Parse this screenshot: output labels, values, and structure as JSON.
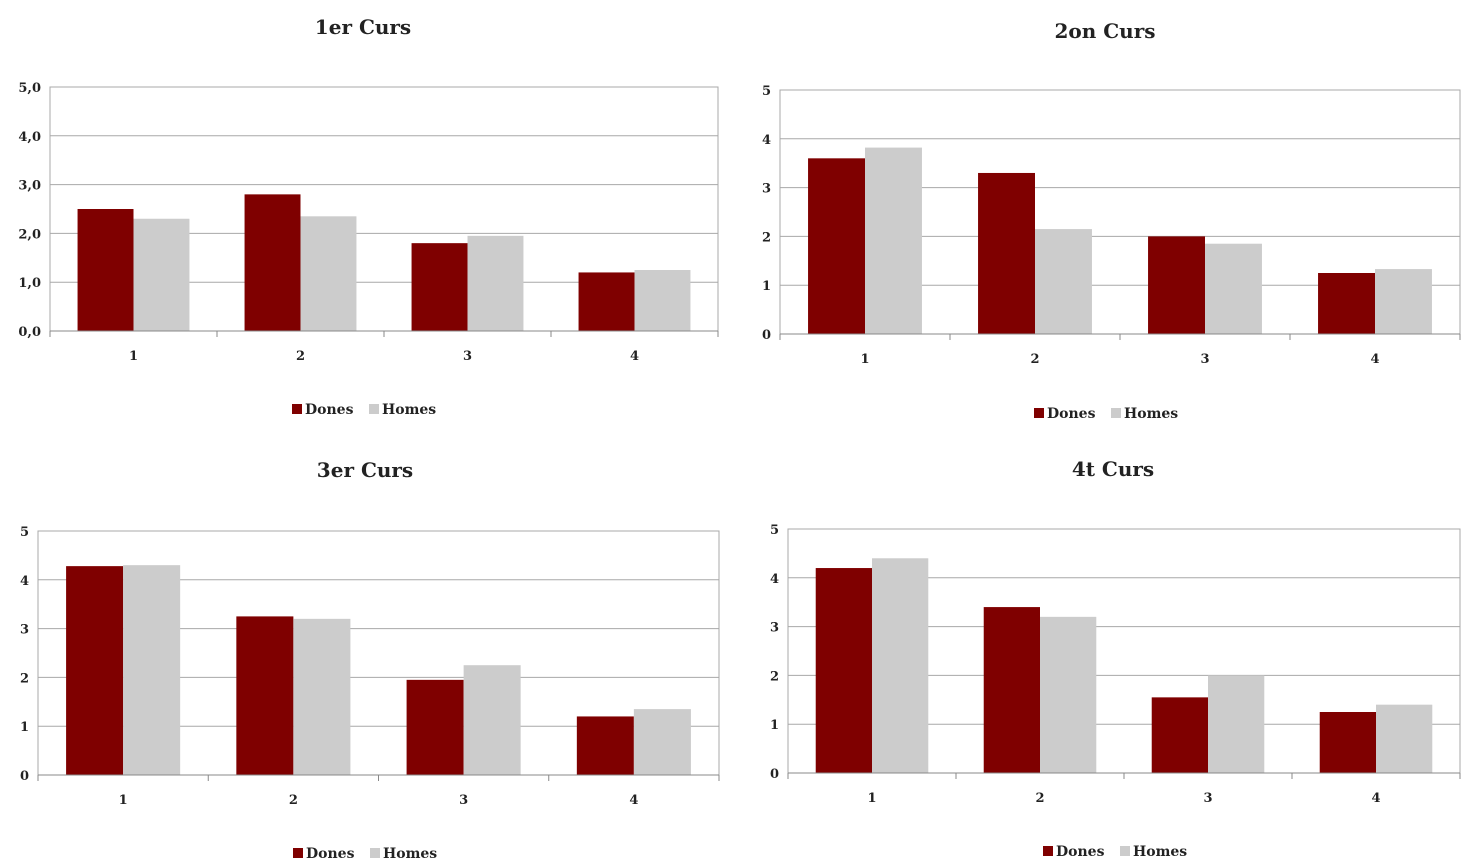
{
  "legend": {
    "women": "Dones",
    "men": "Homes"
  },
  "colors": {
    "women": "#7f0000",
    "men": "#cccccc"
  },
  "chart_data": [
    {
      "type": "bar",
      "title": "1er Curs",
      "categories": [
        "1",
        "2",
        "3",
        "4"
      ],
      "series": [
        {
          "name": "Dones",
          "values": [
            2.5,
            2.8,
            1.8,
            1.2
          ]
        },
        {
          "name": "Homes",
          "values": [
            2.3,
            2.35,
            1.95,
            1.25
          ]
        }
      ],
      "ylim": [
        0,
        5
      ],
      "yticks": [
        "0,0",
        "1,0",
        "2,0",
        "3,0",
        "4,0",
        "5,0"
      ],
      "grid": true,
      "legend_position": "bottom"
    },
    {
      "type": "bar",
      "title": "2on Curs",
      "categories": [
        "1",
        "2",
        "3",
        "4"
      ],
      "series": [
        {
          "name": "Dones",
          "values": [
            3.6,
            3.3,
            2.0,
            1.25
          ]
        },
        {
          "name": "Homes",
          "values": [
            3.82,
            2.15,
            1.85,
            1.33
          ]
        }
      ],
      "ylim": [
        0,
        5
      ],
      "yticks": [
        "0",
        "1",
        "2",
        "3",
        "4",
        "5"
      ],
      "grid": true,
      "legend_position": "bottom"
    },
    {
      "type": "bar",
      "title": "3er Curs",
      "categories": [
        "1",
        "2",
        "3",
        "4"
      ],
      "series": [
        {
          "name": "Dones",
          "values": [
            4.28,
            3.25,
            1.95,
            1.2
          ]
        },
        {
          "name": "Homes",
          "values": [
            4.3,
            3.2,
            2.25,
            1.35
          ]
        }
      ],
      "ylim": [
        0,
        5
      ],
      "yticks": [
        "0",
        "1",
        "2",
        "3",
        "4",
        "5"
      ],
      "grid": true,
      "legend_position": "bottom"
    },
    {
      "type": "bar",
      "title": "4t Curs",
      "categories": [
        "1",
        "2",
        "3",
        "4"
      ],
      "series": [
        {
          "name": "Dones",
          "values": [
            4.2,
            3.4,
            1.55,
            1.25
          ]
        },
        {
          "name": "Homes",
          "values": [
            4.4,
            3.2,
            2.0,
            1.4
          ]
        }
      ],
      "ylim": [
        0,
        5
      ],
      "yticks": [
        "0",
        "1",
        "2",
        "3",
        "4",
        "5"
      ],
      "grid": true,
      "legend_position": "bottom"
    }
  ]
}
